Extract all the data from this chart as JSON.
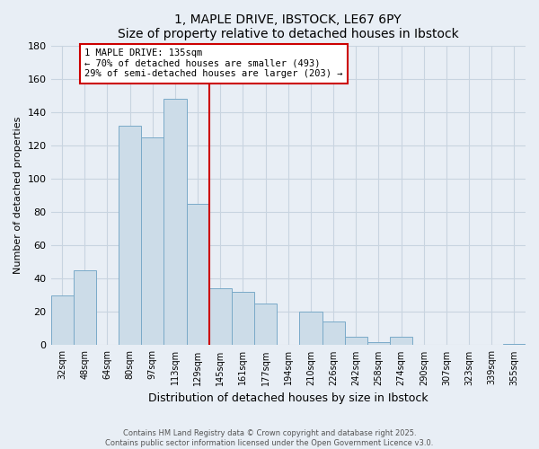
{
  "title": "1, MAPLE DRIVE, IBSTOCK, LE67 6PY",
  "subtitle": "Size of property relative to detached houses in Ibstock",
  "xlabel": "Distribution of detached houses by size in Ibstock",
  "ylabel": "Number of detached properties",
  "bin_labels": [
    "32sqm",
    "48sqm",
    "64sqm",
    "80sqm",
    "97sqm",
    "113sqm",
    "129sqm",
    "145sqm",
    "161sqm",
    "177sqm",
    "194sqm",
    "210sqm",
    "226sqm",
    "242sqm",
    "258sqm",
    "274sqm",
    "290sqm",
    "307sqm",
    "323sqm",
    "339sqm",
    "355sqm"
  ],
  "bar_values": [
    30,
    45,
    0,
    132,
    125,
    148,
    85,
    34,
    32,
    25,
    0,
    20,
    14,
    5,
    2,
    5,
    0,
    0,
    0,
    0,
    1
  ],
  "bar_color": "#ccdce8",
  "bar_edge_color": "#7aaac8",
  "vline_color": "#cc0000",
  "annotation_title": "1 MAPLE DRIVE: 135sqm",
  "annotation_line1": "← 70% of detached houses are smaller (493)",
  "annotation_line2": "29% of semi-detached houses are larger (203) →",
  "annotation_box_color": "white",
  "annotation_box_edge": "#cc0000",
  "ylim": [
    0,
    180
  ],
  "yticks": [
    0,
    20,
    40,
    60,
    80,
    100,
    120,
    140,
    160,
    180
  ],
  "footer1": "Contains HM Land Registry data © Crown copyright and database right 2025.",
  "footer2": "Contains public sector information licensed under the Open Government Licence v3.0.",
  "bg_color": "#e8eef5",
  "grid_color": "#c8d4e0"
}
